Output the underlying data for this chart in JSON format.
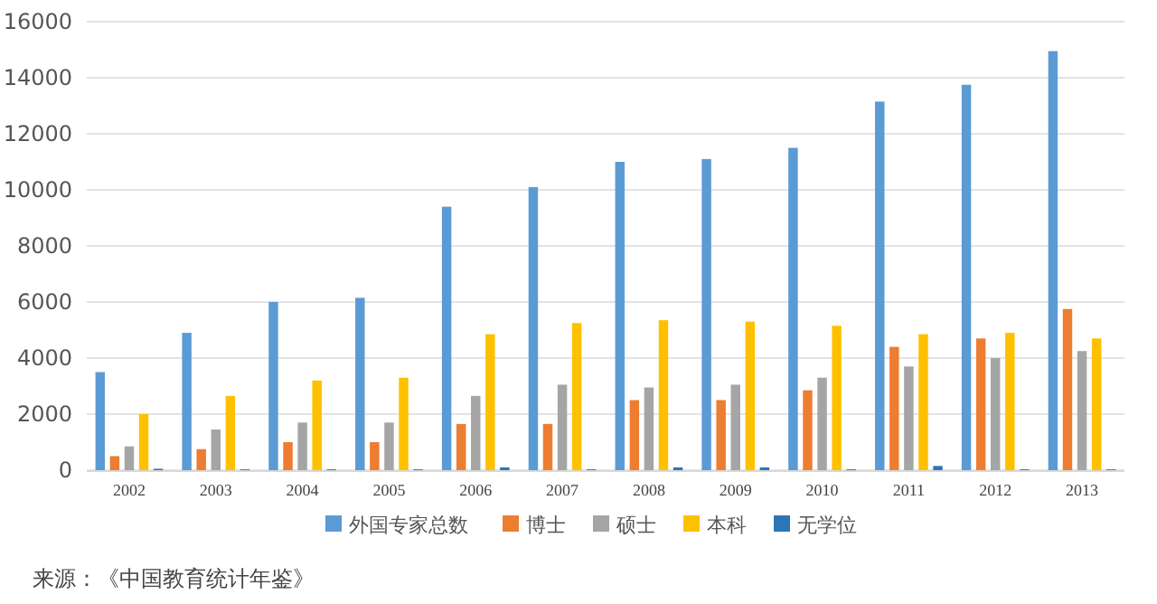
{
  "chart_data": {
    "type": "bar",
    "categories": [
      "2002",
      "2003",
      "2004",
      "2005",
      "2006",
      "2007",
      "2008",
      "2009",
      "2010",
      "2011",
      "2012",
      "2013"
    ],
    "series": [
      {
        "name": "外国专家总数",
        "color": "#5b9bd5",
        "values": [
          3500,
          4900,
          6000,
          6150,
          9400,
          10100,
          11000,
          11100,
          11500,
          13150,
          13750,
          14950
        ]
      },
      {
        "name": "博士",
        "color": "#ed7d31",
        "values": [
          500,
          750,
          1000,
          1000,
          1650,
          1650,
          2500,
          2500,
          2850,
          4400,
          4700,
          5750
        ]
      },
      {
        "name": "硕士",
        "color": "#a5a5a5",
        "values": [
          850,
          1450,
          1700,
          1700,
          2650,
          3050,
          2950,
          3050,
          3300,
          3700,
          4000,
          4250
        ]
      },
      {
        "name": "本科",
        "color": "#ffc000",
        "values": [
          2000,
          2650,
          3200,
          3300,
          4850,
          5250,
          5350,
          5300,
          5150,
          4850,
          4900,
          4700
        ]
      },
      {
        "name": "无学位",
        "color": "#2e75b6",
        "values": [
          50,
          30,
          30,
          30,
          100,
          30,
          100,
          100,
          30,
          150,
          30,
          30
        ]
      }
    ],
    "ylim": [
      0,
      16000
    ],
    "yticks": [
      0,
      2000,
      4000,
      6000,
      8000,
      10000,
      12000,
      14000,
      16000
    ],
    "grid": "y",
    "legend": "bottom",
    "annotations": [
      "来源：《中国教育统计年鉴》"
    ]
  }
}
